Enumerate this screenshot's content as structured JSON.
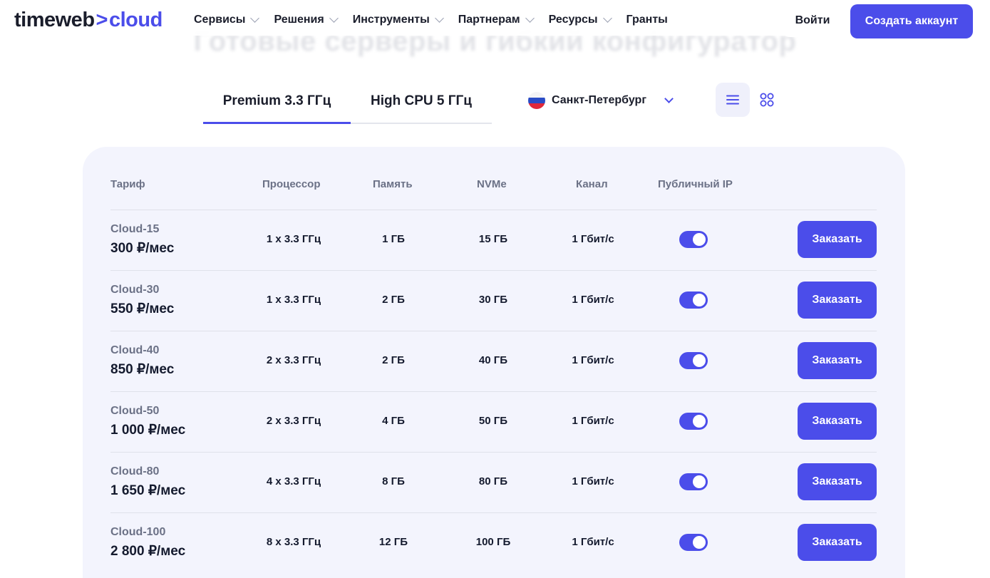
{
  "header": {
    "logo": {
      "part1": "timeweb",
      "chevron": ">",
      "part2": "cloud"
    },
    "nav": [
      {
        "label": "Сервисы"
      },
      {
        "label": "Решения"
      },
      {
        "label": "Инструменты"
      },
      {
        "label": "Партнерам"
      },
      {
        "label": "Ресурсы"
      },
      {
        "label": "Гранты"
      }
    ],
    "login_label": "Войти",
    "signup_label": "Создать аккаунт"
  },
  "background_heading": "Готовые серверы и гибкий конфигуратор",
  "tabs": [
    {
      "label": "Premium 3.3 ГГц",
      "active": true
    },
    {
      "label": "High CPU 5 ГГц",
      "active": false
    }
  ],
  "region": {
    "label": "Санкт-Петербург",
    "flag_icon": "russia-flag-icon"
  },
  "view": {
    "active": "list",
    "list_icon": "list-view-icon",
    "grid_icon": "grid-view-icon"
  },
  "table": {
    "headers": {
      "tariff": "Тариф",
      "cpu": "Процессор",
      "ram": "Память",
      "nvme": "NVMe",
      "channel": "Канал",
      "public_ip": "Публичный IP"
    },
    "order_label": "Заказать",
    "rows": [
      {
        "name": "Cloud-15",
        "price": "300 ₽/мес",
        "cpu": "1 x 3.3 ГГц",
        "ram": "1 ГБ",
        "nvme": "15 ГБ",
        "channel": "1 Гбит/с",
        "public_ip": true
      },
      {
        "name": "Cloud-30",
        "price": "550 ₽/мес",
        "cpu": "1 x 3.3 ГГц",
        "ram": "2 ГБ",
        "nvme": "30 ГБ",
        "channel": "1 Гбит/с",
        "public_ip": true
      },
      {
        "name": "Cloud-40",
        "price": "850 ₽/мес",
        "cpu": "2 x 3.3 ГГц",
        "ram": "2 ГБ",
        "nvme": "40 ГБ",
        "channel": "1 Гбит/с",
        "public_ip": true
      },
      {
        "name": "Cloud-50",
        "price": "1 000 ₽/мес",
        "cpu": "2 x 3.3 ГГц",
        "ram": "4 ГБ",
        "nvme": "50 ГБ",
        "channel": "1 Гбит/с",
        "public_ip": true
      },
      {
        "name": "Cloud-80",
        "price": "1 650 ₽/мес",
        "cpu": "4 x 3.3 ГГц",
        "ram": "8 ГБ",
        "nvme": "80 ГБ",
        "channel": "1 Гбит/с",
        "public_ip": true
      },
      {
        "name": "Cloud-100",
        "price": "2 800 ₽/мес",
        "cpu": "8 x 3.3 ГГц",
        "ram": "12 ГБ",
        "nvme": "100 ГБ",
        "channel": "1 Гбит/с",
        "public_ip": true
      }
    ]
  },
  "colors": {
    "accent": "#4b4dea",
    "card_bg": "#f3f4fd",
    "muted_text": "#6b7186"
  }
}
